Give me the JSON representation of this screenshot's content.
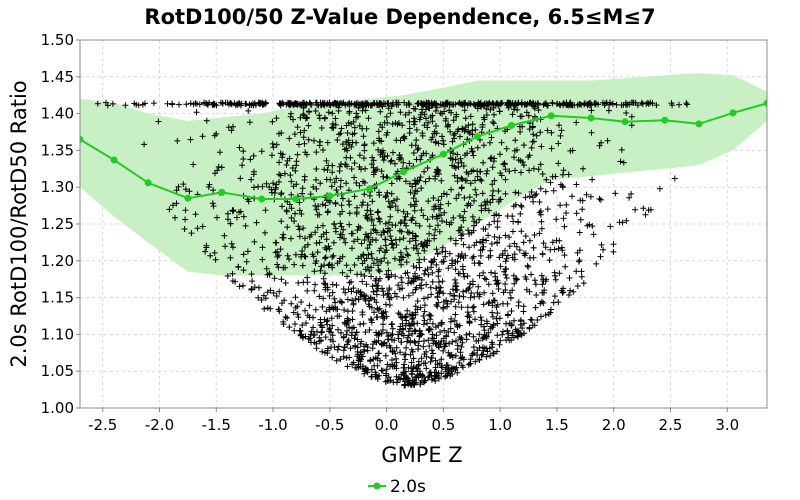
{
  "chart_data": {
    "type": "scatter",
    "title": "RotD100/50 Z-Value Dependence, 6.5≤M≤7",
    "xlabel": "GMPE Z",
    "ylabel": "2.0s RotD100/RotD50 Ratio",
    "xlim": [
      -2.7,
      3.35
    ],
    "ylim": [
      1.0,
      1.5
    ],
    "x_ticks": [
      "-2.5",
      "-2.0",
      "-1.5",
      "-1.0",
      "-0.5",
      "0.0",
      "0.5",
      "1.0",
      "1.5",
      "2.0",
      "2.5",
      "3.0"
    ],
    "y_ticks": [
      "1.00",
      "1.05",
      "1.10",
      "1.15",
      "1.20",
      "1.25",
      "1.30",
      "1.35",
      "1.40",
      "1.45",
      "1.50"
    ],
    "grid": true,
    "legend_position": "bottom-center",
    "colors": {
      "series": "#22cc22",
      "band": "#c8f0c4",
      "points": "#000000"
    },
    "series": [
      {
        "name": "2.0s",
        "x": [
          -2.7,
          -2.4,
          -2.1,
          -1.75,
          -1.45,
          -1.1,
          -0.8,
          -0.5,
          -0.15,
          0.15,
          0.5,
          0.8,
          1.1,
          1.45,
          1.8,
          2.1,
          2.45,
          2.75,
          3.05,
          3.35
        ],
        "y": [
          1.365,
          1.337,
          1.306,
          1.285,
          1.293,
          1.284,
          1.284,
          1.288,
          1.298,
          1.321,
          1.345,
          1.369,
          1.384,
          1.397,
          1.394,
          1.389,
          1.391,
          1.386,
          1.401,
          1.414
        ]
      }
    ],
    "band": {
      "x": [
        -2.7,
        -2.4,
        -2.1,
        -1.75,
        -1.45,
        -1.1,
        -0.8,
        -0.5,
        -0.15,
        0.15,
        0.5,
        0.8,
        1.1,
        1.45,
        1.8,
        2.1,
        2.45,
        2.75,
        3.05,
        3.35
      ],
      "upper": [
        1.42,
        1.415,
        1.4,
        1.39,
        1.395,
        1.4,
        1.41,
        1.415,
        1.42,
        1.425,
        1.435,
        1.445,
        1.445,
        1.445,
        1.445,
        1.448,
        1.452,
        1.455,
        1.452,
        1.43
      ],
      "lower": [
        1.3,
        1.26,
        1.225,
        1.185,
        1.18,
        1.18,
        1.18,
        1.18,
        1.18,
        1.19,
        1.22,
        1.25,
        1.28,
        1.31,
        1.315,
        1.32,
        1.325,
        1.33,
        1.35,
        1.39
      ]
    },
    "scatter_cloud": {
      "count": 7000,
      "cap": 1.415,
      "center_x": 0.2,
      "spread_x": 0.85
    }
  }
}
